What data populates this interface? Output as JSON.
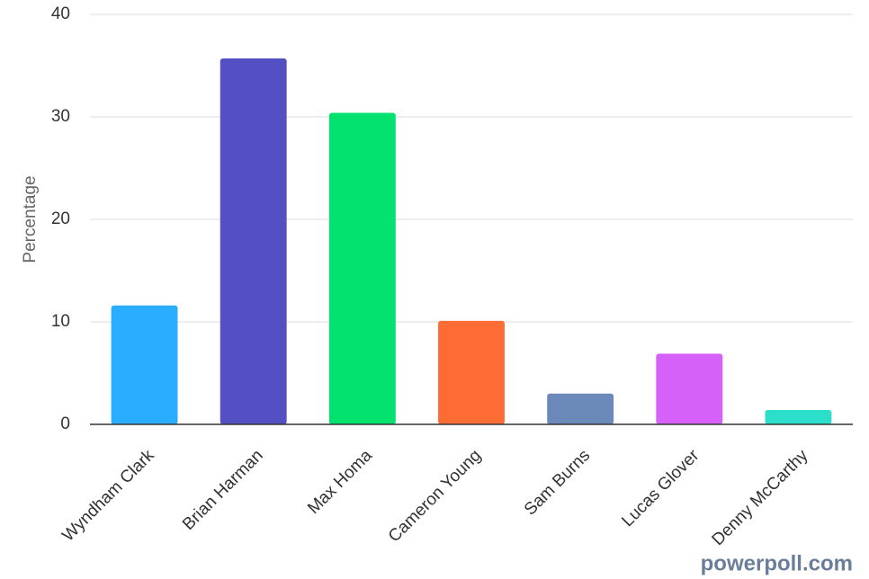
{
  "chart_data": {
    "type": "bar",
    "y_label": "Percentage",
    "categories": [
      "Wyndham Clark",
      "Brian Harman",
      "Max Homa",
      "Cameron Young",
      "Sam Burns",
      "Lucas Glover",
      "Denny McCarthy"
    ],
    "values": [
      11.6,
      35.7,
      30.4,
      10.1,
      3.0,
      6.9,
      1.4
    ],
    "colors": [
      "#2aacff",
      "#5350c4",
      "#03e26f",
      "#fe6c36",
      "#6b8aba",
      "#d561f9",
      "#2bdfca"
    ],
    "ylim": [
      0,
      40
    ],
    "yticks": [
      0,
      10,
      20,
      30,
      40
    ],
    "grid": true,
    "watermark": "powerpoll.com"
  }
}
